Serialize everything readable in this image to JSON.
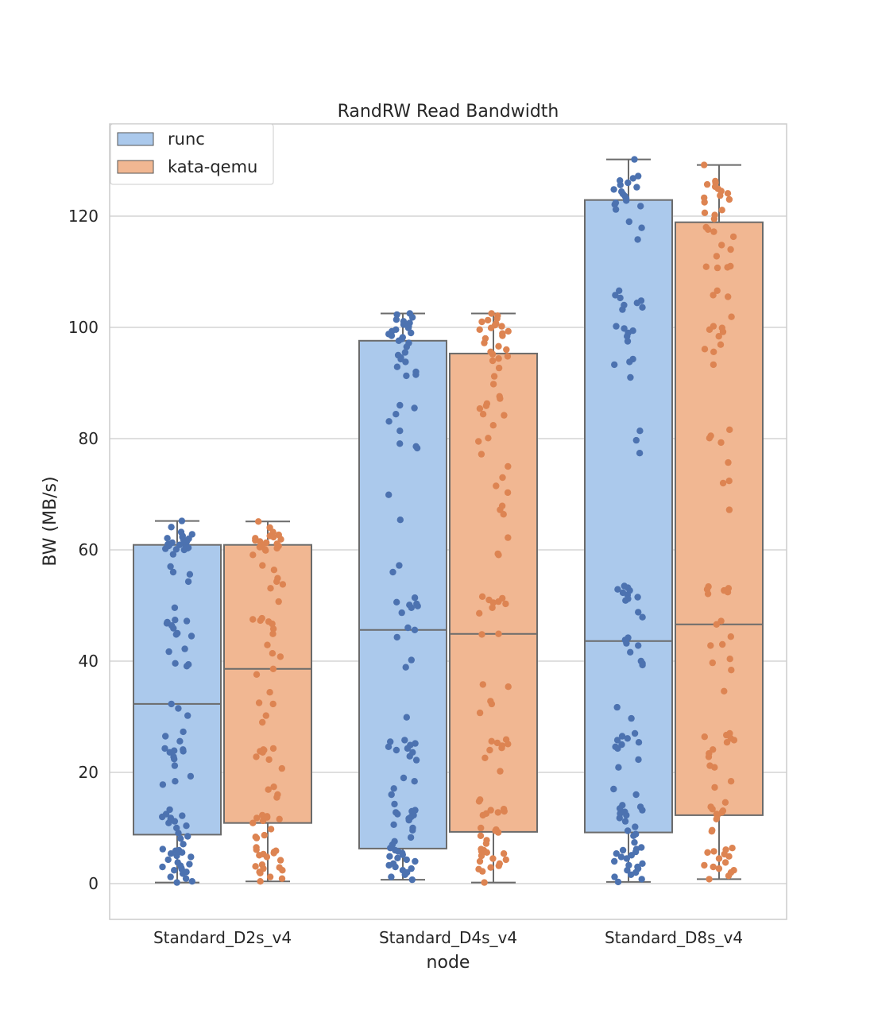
{
  "chart_data": {
    "type": "box",
    "title": "RandRW Read Bandwidth",
    "xlabel": "node",
    "ylabel": "BW (MB/s)",
    "ylim": [
      -6.5,
      137
    ],
    "yticks": [
      0,
      20,
      40,
      60,
      80,
      100,
      120
    ],
    "grid": true,
    "legend_position": "top-left",
    "categories": [
      "Standard_D2s_v4",
      "Standard_D4s_v4",
      "Standard_D8s_v4"
    ],
    "series": [
      {
        "name": "runc",
        "box_color": "#abc9ec",
        "point_color": "#4c72b0",
        "boxes": [
          {
            "whisker_low": 0.2,
            "q1": 8.8,
            "median": 32.3,
            "q3": 60.9,
            "whisker_high": 65.2
          },
          {
            "whisker_low": 0.7,
            "q1": 6.3,
            "median": 45.6,
            "q3": 97.6,
            "whisker_high": 102.5
          },
          {
            "whisker_low": 0.3,
            "q1": 9.2,
            "median": 43.6,
            "q3": 122.9,
            "whisker_high": 130.2
          }
        ]
      },
      {
        "name": "kata-qemu",
        "box_color": "#f1b792",
        "point_color": "#dd8452",
        "boxes": [
          {
            "whisker_low": 0.4,
            "q1": 10.9,
            "median": 38.6,
            "q3": 60.9,
            "whisker_high": 65.1
          },
          {
            "whisker_low": 0.2,
            "q1": 9.3,
            "median": 44.9,
            "q3": 95.3,
            "whisker_high": 102.5
          },
          {
            "whisker_low": 0.8,
            "q1": 12.3,
            "median": 46.6,
            "q3": 118.9,
            "whisker_high": 129.2
          }
        ]
      }
    ],
    "points": [
      [
        [
          65.2,
          64.1,
          63.2,
          62.8,
          62.5,
          62.3,
          62.1,
          62.0,
          61.8,
          61.6,
          61.5,
          61.3,
          61.2,
          61.0,
          60.9,
          60.8,
          60.7,
          60.6,
          60.4,
          60.3,
          60.2,
          60.1,
          60.0,
          59.2,
          57.0,
          56.0,
          55.6,
          54.3,
          49.6,
          47.4,
          47.2,
          47.0,
          46.8,
          46.4,
          45.9,
          45.0,
          44.5,
          44.8,
          42.2,
          41.7,
          39.6,
          39.4,
          39.1,
          32.3,
          31.5,
          30.2,
          27.3,
          26.5,
          25.6,
          24.3,
          24.1,
          23.9,
          23.8,
          23.6,
          22.8,
          22.4,
          21.2,
          19.3,
          18.4,
          17.8,
          13.3,
          12.5,
          12.2,
          12.0,
          11.8,
          11.5,
          11.2,
          10.9,
          10.4,
          10.0,
          9.1,
          8.5,
          8.1,
          7.1,
          6.2,
          6.0,
          5.9,
          5.8,
          5.6,
          5.4,
          5.0,
          4.8,
          4.3,
          3.8,
          3.5,
          3.2,
          3.0,
          2.8,
          2.6,
          2.4,
          2.1,
          1.8,
          1.2,
          0.9,
          0.4,
          0.2
        ],
        [
          65.1,
          64.0,
          63.2,
          62.7,
          62.5,
          62.3,
          62.1,
          61.9,
          61.7,
          61.5,
          61.3,
          61.1,
          60.9,
          60.7,
          60.5,
          60.3,
          60.1,
          59.9,
          59.1,
          57.2,
          56.4,
          54.9,
          54.3,
          53.8,
          53.1,
          50.7,
          47.7,
          47.5,
          47.3,
          47.1,
          46.7,
          45.8,
          44.9,
          42.9,
          41.4,
          40.8,
          38.6,
          37.6,
          34.4,
          32.5,
          32.3,
          30.2,
          29.0,
          24.3,
          24.1,
          24.0,
          23.8,
          23.6,
          22.8,
          22.3,
          20.7,
          17.4,
          16.9,
          16.0,
          15.5,
          12.3,
          12.1,
          11.9,
          11.8,
          11.6,
          11.3,
          10.9,
          9.8,
          8.7,
          8.4,
          8.2,
          6.5,
          6.1,
          5.9,
          5.7,
          5.5,
          5.3,
          5.1,
          4.8,
          4.2,
          3.4,
          3.1,
          2.9,
          2.7,
          2.4,
          2.1,
          1.9,
          1.2,
          0.9,
          0.4
        ]
      ],
      [
        [
          102.5,
          102.3,
          101.8,
          101.4,
          101.1,
          100.8,
          100.5,
          100.2,
          99.9,
          99.6,
          99.3,
          99.0,
          98.8,
          98.5,
          98.2,
          97.9,
          97.6,
          97.2,
          96.5,
          95.5,
          95.0,
          94.6,
          94.3,
          93.8,
          92.9,
          92.0,
          91.5,
          91.3,
          86.0,
          85.5,
          84.4,
          83.1,
          81.4,
          79.1,
          78.6,
          78.3,
          69.9,
          65.4,
          57.2,
          56.0,
          51.4,
          50.6,
          50.3,
          50.1,
          49.9,
          49.6,
          48.7,
          46.0,
          45.6,
          44.3,
          40.2,
          38.9,
          29.9,
          25.8,
          25.5,
          25.2,
          24.9,
          24.6,
          24.3,
          24.0,
          23.6,
          22.9,
          22.2,
          19.0,
          18.4,
          17.1,
          16.0,
          14.3,
          13.2,
          13.0,
          12.8,
          12.5,
          12.3,
          12.0,
          11.7,
          11.4,
          10.6,
          10.0,
          9.6,
          8.3,
          7.6,
          7.0,
          6.4,
          6.0,
          5.8,
          5.5,
          5.2,
          4.9,
          4.6,
          4.3,
          4.0,
          3.6,
          3.3,
          3.0,
          2.7,
          2.4,
          2.0,
          1.6,
          1.2,
          0.7
        ],
        [
          102.5,
          102.1,
          101.6,
          101.3,
          101.0,
          100.7,
          100.4,
          100.2,
          99.9,
          99.6,
          99.3,
          98.9,
          98.5,
          98.0,
          97.2,
          96.6,
          96.0,
          95.6,
          95.2,
          94.8,
          94.4,
          94.0,
          92.7,
          91.2,
          89.8,
          87.6,
          87.2,
          86.3,
          85.9,
          85.4,
          84.4,
          84.2,
          82.4,
          80.1,
          79.5,
          77.2,
          75.0,
          73.0,
          71.5,
          70.3,
          67.9,
          67.2,
          66.4,
          62.2,
          59.3,
          59.1,
          51.6,
          51.3,
          51.0,
          50.7,
          50.5,
          50.3,
          49.6,
          48.6,
          44.9,
          44.8,
          35.8,
          35.4,
          32.8,
          32.3,
          30.7,
          25.9,
          25.6,
          25.3,
          25.1,
          24.8,
          24.4,
          24.0,
          22.6,
          20.2,
          15.1,
          14.8,
          13.4,
          13.2,
          13.0,
          12.8,
          12.6,
          12.3,
          10.0,
          9.7,
          9.5,
          9.2,
          8.6,
          7.8,
          7.2,
          6.2,
          6.0,
          5.8,
          5.6,
          5.4,
          5.0,
          4.5,
          4.3,
          4.0,
          3.6,
          3.2,
          2.9,
          2.6,
          2.2,
          0.2
        ]
      ],
      [
        [
          130.2,
          127.2,
          126.8,
          126.4,
          126.0,
          125.6,
          125.2,
          124.8,
          124.4,
          124.0,
          123.6,
          123.2,
          122.8,
          122.4,
          122.1,
          121.8,
          121.2,
          119.0,
          117.9,
          115.8,
          106.6,
          105.8,
          105.3,
          104.8,
          104.4,
          104.0,
          103.6,
          103.2,
          100.2,
          99.8,
          99.4,
          99.0,
          98.4,
          97.5,
          94.3,
          93.8,
          93.3,
          91.0,
          81.4,
          79.7,
          77.4,
          53.5,
          53.2,
          52.9,
          52.7,
          52.3,
          51.9,
          51.5,
          51.2,
          50.9,
          48.8,
          47.9,
          44.2,
          43.8,
          43.2,
          42.8,
          41.6,
          40.0,
          39.6,
          39.3,
          31.7,
          29.7,
          27.0,
          26.5,
          26.1,
          25.8,
          25.4,
          25.0,
          24.6,
          24.3,
          22.3,
          20.9,
          17.0,
          16.0,
          14.1,
          13.8,
          13.5,
          13.2,
          12.9,
          12.6,
          12.3,
          11.8,
          11.2,
          10.2,
          9.5,
          8.9,
          8.6,
          7.4,
          6.5,
          6.2,
          6.0,
          5.7,
          5.4,
          5.1,
          4.8,
          4.5,
          4.0,
          3.6,
          3.3,
          3.0,
          2.7,
          2.4,
          2.0,
          1.6,
          1.2,
          0.8,
          0.3
        ],
        [
          129.2,
          126.3,
          126.0,
          125.7,
          125.3,
          124.9,
          124.5,
          124.1,
          123.7,
          123.3,
          123.0,
          122.5,
          121.1,
          120.6,
          120.2,
          119.5,
          118.0,
          117.6,
          117.2,
          116.3,
          114.8,
          114.0,
          112.8,
          111.0,
          110.9,
          110.8,
          110.7,
          106.6,
          105.8,
          105.5,
          101.9,
          100.2,
          99.9,
          99.6,
          99.2,
          98.4,
          96.9,
          96.1,
          95.6,
          93.3,
          81.6,
          80.5,
          80.1,
          79.3,
          75.7,
          72.4,
          72.0,
          67.2,
          53.4,
          53.1,
          52.9,
          52.7,
          52.4,
          52.1,
          47.2,
          46.6,
          44.4,
          43.0,
          42.8,
          40.4,
          39.7,
          38.4,
          34.6,
          27.0,
          26.7,
          26.4,
          26.1,
          25.8,
          25.4,
          24.1,
          23.4,
          22.8,
          21.2,
          20.9,
          18.4,
          17.3,
          14.6,
          13.8,
          13.4,
          13.1,
          12.8,
          12.5,
          12.2,
          11.6,
          9.6,
          9.4,
          6.4,
          6.1,
          5.8,
          5.6,
          5.3,
          4.9,
          4.5,
          3.8,
          3.3,
          3.0,
          2.7,
          2.4,
          2.0,
          1.4,
          0.8
        ]
      ]
    ]
  }
}
